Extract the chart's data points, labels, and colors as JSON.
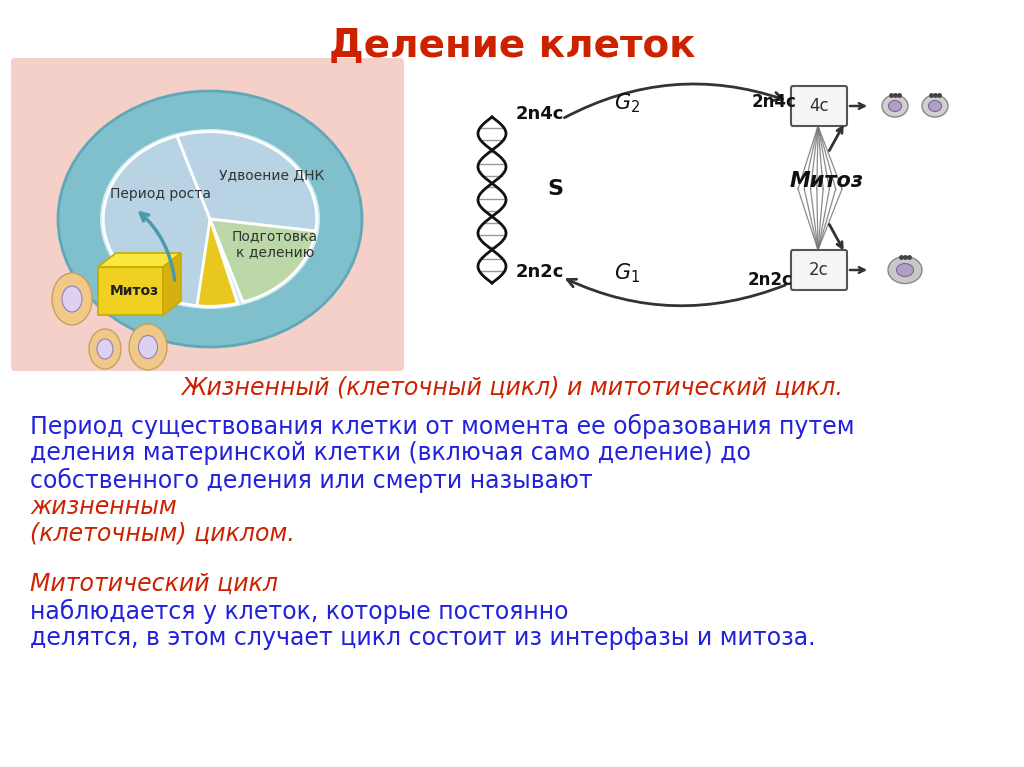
{
  "title": "Деление клеток",
  "title_color": "#cc2200",
  "title_fontsize": 28,
  "subtitle": "Жизненный (клеточный цикл) и митотический цикл.",
  "subtitle_color": "#cc2200",
  "subtitle_fontsize": 17,
  "text_color_blue": "#2222dd",
  "text_color_red": "#cc2200",
  "text_fontsize": 17,
  "background_color": "#ffffff",
  "pie_bg": "#f5d0c8",
  "p1_line1": "Период существования клетки от момента ее образования путем",
  "p1_line2": "деления материнской клетки (включая само деление) до",
  "p1_line3": "собственного деления или смерти называют ",
  "p1_red1": "жизненным",
  "p1_red2": "(клеточным) циклом.",
  "p2_red": "Митотический цикл ",
  "p2_blue1": "наблюдается у клеток, которые постоянно",
  "p2_blue2": "делятся, в этом случает цикл состоит из интерфазы и митоза.",
  "mitoz_label": "Митоз"
}
